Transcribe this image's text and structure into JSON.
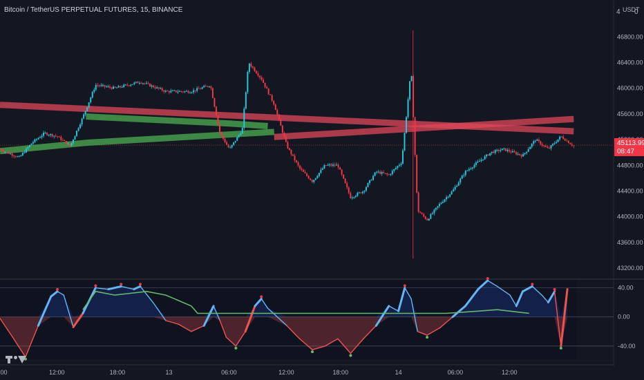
{
  "header": {
    "symbol_line": "Bitcoin / TetherUS PERPETUAL FUTURES, 15, BINANCE",
    "currency_unit": "USDT",
    "top_left_digit": "4",
    "top_right_digit": "0",
    "logo_icon": "tradingview-logo-icon"
  },
  "last_price": {
    "value": "45113.99",
    "countdown": "08:47"
  },
  "colors": {
    "background": "#131722",
    "bull": "#26c6da",
    "bear": "#f23645",
    "ribbon_red": "#e0475a",
    "ribbon_green": "#4caf50",
    "osc_blue": "#64b5f6",
    "osc_green": "#66bb6a",
    "osc_red": "#ef5350"
  },
  "chart_data": [
    {
      "type": "candlestick",
      "title": "Bitcoin / TetherUS PERPETUAL FUTURES, 15, BINANCE",
      "ylabel": "USDT",
      "ylim": [
        43050,
        47050
      ],
      "y_ticks": [
        "46800.00",
        "46400.00",
        "46000.00",
        "45600.00",
        "45200.00",
        "44800.00",
        "44400.00",
        "44000.00",
        "43600.00",
        "43200.00"
      ],
      "x_ticks": [
        "06:00",
        "12:00",
        "18:00",
        "13",
        "06:00",
        "12:00",
        "18:00",
        "14",
        "06:00",
        "12:00"
      ],
      "last_price": 45113.99,
      "close_path": [
        {
          "t": 0,
          "p": 45050
        },
        {
          "t": 0.03,
          "p": 44920
        },
        {
          "t": 0.05,
          "p": 45150
        },
        {
          "t": 0.07,
          "p": 45300
        },
        {
          "t": 0.09,
          "p": 45250
        },
        {
          "t": 0.11,
          "p": 45100
        },
        {
          "t": 0.13,
          "p": 45550
        },
        {
          "t": 0.15,
          "p": 46050
        },
        {
          "t": 0.18,
          "p": 46000
        },
        {
          "t": 0.22,
          "p": 46100
        },
        {
          "t": 0.26,
          "p": 45950
        },
        {
          "t": 0.3,
          "p": 45950
        },
        {
          "t": 0.33,
          "p": 46050
        },
        {
          "t": 0.345,
          "p": 45300
        },
        {
          "t": 0.36,
          "p": 45050
        },
        {
          "t": 0.38,
          "p": 45350
        },
        {
          "t": 0.39,
          "p": 46400
        },
        {
          "t": 0.41,
          "p": 46150
        },
        {
          "t": 0.43,
          "p": 45750
        },
        {
          "t": 0.45,
          "p": 45100
        },
        {
          "t": 0.47,
          "p": 44750
        },
        {
          "t": 0.49,
          "p": 44550
        },
        {
          "t": 0.51,
          "p": 44800
        },
        {
          "t": 0.53,
          "p": 44800
        },
        {
          "t": 0.55,
          "p": 44300
        },
        {
          "t": 0.57,
          "p": 44400
        },
        {
          "t": 0.59,
          "p": 44700
        },
        {
          "t": 0.61,
          "p": 44650
        },
        {
          "t": 0.63,
          "p": 44850
        },
        {
          "t": 0.645,
          "p": 46300
        },
        {
          "t": 0.655,
          "p": 44100
        },
        {
          "t": 0.67,
          "p": 43950
        },
        {
          "t": 0.69,
          "p": 44200
        },
        {
          "t": 0.71,
          "p": 44400
        },
        {
          "t": 0.73,
          "p": 44700
        },
        {
          "t": 0.75,
          "p": 44850
        },
        {
          "t": 0.77,
          "p": 45000
        },
        {
          "t": 0.79,
          "p": 45050
        },
        {
          "t": 0.82,
          "p": 44950
        },
        {
          "t": 0.84,
          "p": 45200
        },
        {
          "t": 0.86,
          "p": 45050
        },
        {
          "t": 0.88,
          "p": 45250
        },
        {
          "t": 0.9,
          "p": 45100
        }
      ],
      "ribbons": [
        {
          "color": "red",
          "points": [
            [
              0,
              45740
            ],
            [
              0.9,
              45330
            ]
          ]
        },
        {
          "color": "red",
          "points": [
            [
              0.43,
              45240
            ],
            [
              0.9,
              45520
            ]
          ]
        },
        {
          "color": "green",
          "points": [
            [
              0,
              45020
            ],
            [
              0.135,
              45150
            ],
            [
              0.36,
              45280
            ],
            [
              0.43,
              45320
            ]
          ]
        },
        {
          "color": "green",
          "points": [
            [
              0.135,
              45560
            ],
            [
              0.36,
              45450
            ],
            [
              0.42,
              45410
            ]
          ]
        }
      ]
    },
    {
      "type": "area",
      "title": "",
      "ylim": [
        -60,
        50
      ],
      "y_ticks": [
        "40.00",
        "0.00",
        "-40.00"
      ],
      "levels": [
        40,
        0,
        -40
      ],
      "series": [
        {
          "values": [
            [
              0,
              -2
            ],
            [
              0.02,
              -28
            ],
            [
              0.04,
              -55
            ],
            [
              0.06,
              -12
            ],
            [
              0.08,
              28
            ],
            [
              0.09,
              35
            ],
            [
              0.1,
              30
            ],
            [
              0.115,
              -14
            ],
            [
              0.13,
              5
            ],
            [
              0.15,
              40
            ],
            [
              0.17,
              38
            ],
            [
              0.19,
              42
            ],
            [
              0.21,
              38
            ],
            [
              0.22,
              42
            ],
            [
              0.24,
              20
            ],
            [
              0.26,
              -5
            ],
            [
              0.28,
              -10
            ],
            [
              0.3,
              -20
            ],
            [
              0.32,
              -12
            ],
            [
              0.335,
              15
            ],
            [
              0.345,
              -5
            ],
            [
              0.355,
              -28
            ],
            [
              0.37,
              -40
            ],
            [
              0.385,
              -20
            ],
            [
              0.4,
              15
            ],
            [
              0.41,
              25
            ],
            [
              0.42,
              12
            ],
            [
              0.45,
              -12
            ],
            [
              0.47,
              -30
            ],
            [
              0.49,
              -45
            ],
            [
              0.51,
              -40
            ],
            [
              0.53,
              -30
            ],
            [
              0.55,
              -50
            ],
            [
              0.57,
              -30
            ],
            [
              0.59,
              -12
            ],
            [
              0.61,
              15
            ],
            [
              0.625,
              8
            ],
            [
              0.635,
              40
            ],
            [
              0.645,
              25
            ],
            [
              0.655,
              -20
            ],
            [
              0.67,
              -25
            ],
            [
              0.69,
              -15
            ],
            [
              0.71,
              0
            ],
            [
              0.73,
              15
            ],
            [
              0.75,
              38
            ],
            [
              0.765,
              50
            ],
            [
              0.78,
              42
            ],
            [
              0.8,
              30
            ],
            [
              0.81,
              15
            ],
            [
              0.82,
              35
            ],
            [
              0.835,
              42
            ],
            [
              0.85,
              30
            ],
            [
              0.86,
              20
            ],
            [
              0.87,
              35
            ],
            [
              0.88,
              -40
            ],
            [
              0.89,
              38
            ]
          ]
        },
        {
          "values": [
            [
              0.13,
              10
            ],
            [
              0.15,
              35
            ],
            [
              0.18,
              30
            ],
            [
              0.2,
              32
            ],
            [
              0.23,
              35
            ],
            [
              0.26,
              30
            ],
            [
              0.3,
              15
            ],
            [
              0.31,
              5
            ],
            [
              0.7,
              5
            ],
            [
              0.75,
              8
            ],
            [
              0.78,
              10
            ],
            [
              0.83,
              5
            ]
          ]
        }
      ]
    }
  ]
}
